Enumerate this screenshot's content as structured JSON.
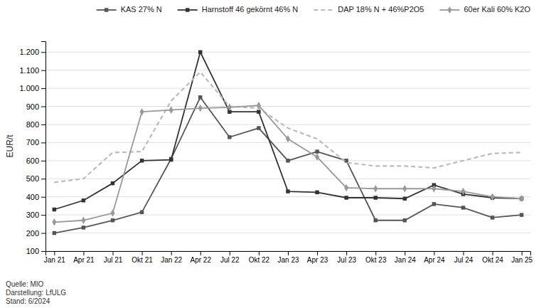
{
  "chart_data": {
    "type": "line",
    "y_label": "EUR/t",
    "annotations": [
      "Quelle: MIO\nDarstellung: LfULG\nStand: 6/2024"
    ],
    "categories": [
      "Jan 21",
      "Apr 21",
      "Jul 21",
      "Okt 21",
      "Jan 22",
      "Apr 22",
      "Jul 22",
      "Okt 22",
      "Jan 23",
      "Apr 23",
      "Jul 23",
      "Okt 23",
      "Jan 24",
      "Apr 24",
      "Jul 24",
      "Okt 24",
      "Jan 25"
    ],
    "series": [
      {
        "name": "KAS 27% N",
        "color": "#555555",
        "marker": "square",
        "line_style": "solid",
        "values": [
          200,
          230,
          270,
          315,
          610,
          950,
          730,
          780,
          600,
          650,
          600,
          270,
          270,
          360,
          340,
          285,
          300
        ]
      },
      {
        "name": "Harnstoff 46 gekörnt 46% N",
        "color": "#333333",
        "marker": "square",
        "line_style": "solid",
        "values": [
          330,
          380,
          475,
          600,
          605,
          1200,
          870,
          870,
          430,
          425,
          395,
          395,
          390,
          465,
          415,
          395,
          390
        ]
      },
      {
        "name": "DAP 18% N + 46%P2O5",
        "color": "#bbbbbb",
        "marker": "none",
        "line_style": "dashed",
        "values": [
          480,
          500,
          645,
          650,
          930,
          1090,
          900,
          890,
          780,
          720,
          590,
          570,
          570,
          560,
          600,
          640,
          645
        ]
      },
      {
        "name": "60er Kali 60% K2O",
        "color": "#999999",
        "marker": "diamond",
        "line_style": "solid",
        "values": [
          260,
          270,
          310,
          870,
          880,
          890,
          895,
          905,
          720,
          620,
          450,
          445,
          445,
          445,
          430,
          400,
          390
        ]
      }
    ],
    "ylim": [
      100,
      1260
    ],
    "yticks": [
      100,
      200,
      300,
      400,
      500,
      600,
      700,
      800,
      900,
      {
        "value": 1000,
        "label": "1.000"
      },
      {
        "value": 1100,
        "label": "1.100"
      },
      {
        "value": 1200,
        "label": "1.200"
      }
    ],
    "grid": true,
    "legend": "upper right"
  }
}
